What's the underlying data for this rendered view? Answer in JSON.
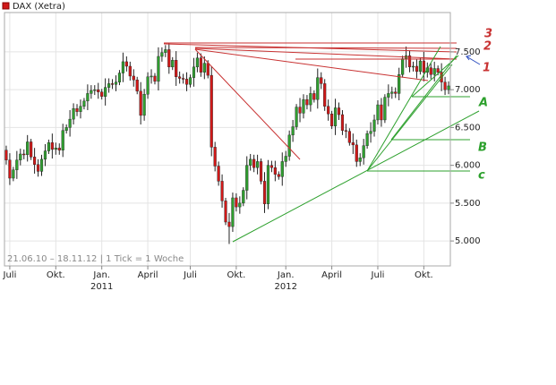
{
  "chart_data": {
    "type": "candlestick",
    "title": "DAX (Xetra)",
    "note": "21.06.10 – 18.11.12 | 1 Tick = 1 Woche",
    "up_color": "#2f9e2f",
    "down_color": "#d01818",
    "grid": true,
    "ylim": [
      4670,
      8020
    ],
    "yticks": [
      {
        "value": 5000,
        "label": "5.000"
      },
      {
        "value": 5500,
        "label": "5.500"
      },
      {
        "value": 6000,
        "label": "6.000"
      },
      {
        "value": 6500,
        "label": "6.500"
      },
      {
        "value": 7000,
        "label": "7.000"
      },
      {
        "value": 7500,
        "label": "7.500"
      }
    ],
    "xlim": [
      -0.5,
      125.5
    ],
    "xticks": [
      {
        "value": 1,
        "label": "Juli"
      },
      {
        "value": 14,
        "label": "Okt."
      },
      {
        "value": 27,
        "label": "Jan."
      },
      {
        "value": 40,
        "label": "April"
      },
      {
        "value": 52,
        "label": "Juli"
      },
      {
        "value": 65,
        "label": "Okt."
      },
      {
        "value": 79,
        "label": "Jan."
      },
      {
        "value": 92,
        "label": "April"
      },
      {
        "value": 105,
        "label": "Juli"
      },
      {
        "value": 118,
        "label": "Okt."
      }
    ],
    "x_year_labels": [
      {
        "value": 27,
        "label": "2011"
      },
      {
        "value": 79,
        "label": "2012"
      }
    ],
    "annotations": [
      "3",
      "2",
      "1",
      "A",
      "B",
      "c"
    ],
    "open": [
      6200,
      6070,
      5830,
      5940,
      6070,
      6150,
      6140,
      6310,
      6110,
      6010,
      5920,
      6080,
      6190,
      6300,
      6210,
      6230,
      6200,
      6460,
      6500,
      6610,
      6750,
      6710,
      6780,
      6850,
      6950,
      6990,
      7000,
      6970,
      6910,
      7030,
      7080,
      7070,
      7100,
      7220,
      7370,
      7310,
      7180,
      7130,
      6980,
      6660,
      6940,
      7170,
      7180,
      7110,
      7440,
      7490,
      7530,
      7300,
      7390,
      7170,
      7150,
      7140,
      7070,
      7160,
      7300,
      7420,
      7230,
      7350,
      7190,
      6240,
      5990,
      5790,
      5530,
      5250,
      5190,
      5570,
      5450,
      5500,
      5670,
      6000,
      6080,
      5970,
      6050,
      5790,
      5490,
      6000,
      5970,
      5880,
      5850,
      6050,
      6120,
      6400,
      6510,
      6770,
      6690,
      6870,
      6800,
      6950,
      6870,
      7160,
      7080,
      6780,
      6680,
      6520,
      6760,
      6670,
      6460,
      6450,
      6300,
      6270,
      6050,
      6100,
      6260,
      6420,
      6450,
      6600,
      6800,
      6600,
      6900,
      6950,
      6970,
      6950,
      7200,
      7410,
      7450,
      7300,
      7310,
      7240,
      7380,
      7230,
      7290,
      7200,
      7280,
      7230,
      7100,
      7000
    ],
    "high": [
      6260,
      6160,
      5980,
      6190,
      6220,
      6210,
      6400,
      6350,
      6230,
      6080,
      6140,
      6280,
      6340,
      6420,
      6300,
      6290,
      6550,
      6540,
      6730,
      6820,
      6810,
      6870,
      6890,
      7070,
      7060,
      7060,
      7090,
      7010,
      7150,
      7150,
      7140,
      7190,
      7260,
      7490,
      7440,
      7370,
      7270,
      7170,
      7100,
      7010,
      7230,
      7270,
      7220,
      7560,
      7560,
      7590,
      7620,
      7430,
      7510,
      7240,
      7210,
      7230,
      7200,
      7420,
      7490,
      7480,
      7440,
      7390,
      7310,
      6310,
      6050,
      5880,
      5570,
      5370,
      5640,
      5630,
      5590,
      5710,
      6120,
      6150,
      6140,
      6140,
      6090,
      5910,
      6070,
      6060,
      6060,
      5920,
      6170,
      6190,
      6460,
      6600,
      6810,
      6890,
      6940,
      6930,
      7040,
      6990,
      7280,
      7230,
      7140,
      6870,
      6720,
      6880,
      6830,
      6730,
      6550,
      6490,
      6420,
      6340,
      6160,
      6350,
      6460,
      6570,
      6670,
      6860,
      6890,
      6940,
      7070,
      7040,
      7030,
      7290,
      7450,
      7570,
      7520,
      7370,
      7400,
      7420,
      7500,
      7360,
      7350,
      7370,
      7320,
      7350,
      7170,
      7110
    ],
    "low": [
      6010,
      5740,
      5790,
      5820,
      6000,
      6080,
      6050,
      6070,
      5890,
      5850,
      5860,
      5990,
      6150,
      6090,
      6140,
      6140,
      6110,
      6420,
      6380,
      6540,
      6650,
      6620,
      6740,
      6730,
      6880,
      6930,
      6880,
      6870,
      6790,
      6960,
      7010,
      6980,
      7060,
      7100,
      7240,
      7120,
      7040,
      6940,
      6540,
      6590,
      6880,
      7080,
      7070,
      6990,
      7370,
      7430,
      7210,
      7260,
      7050,
      7080,
      7080,
      6980,
      7030,
      7040,
      7230,
      7170,
      7140,
      7150,
      6120,
      5920,
      5730,
      5440,
      5210,
      4960,
      5120,
      5390,
      5360,
      5460,
      5550,
      5930,
      5910,
      5880,
      5750,
      5370,
      5420,
      5910,
      5790,
      5810,
      5730,
      5980,
      6060,
      6310,
      6470,
      6570,
      6620,
      6740,
      6710,
      6830,
      6750,
      7010,
      6720,
      6590,
      6480,
      6400,
      6600,
      6400,
      6360,
      6260,
      6150,
      5980,
      5990,
      6010,
      6220,
      6300,
      6380,
      6540,
      6510,
      6560,
      6780,
      6880,
      6890,
      6860,
      7160,
      7290,
      7230,
      7240,
      7150,
      7200,
      7110,
      7160,
      7140,
      7110,
      7190,
      6980,
      6930,
      6940
    ],
    "close": [
      6070,
      5830,
      5940,
      6070,
      6150,
      6140,
      6310,
      6110,
      6010,
      5920,
      6080,
      6190,
      6300,
      6210,
      6230,
      6200,
      6460,
      6500,
      6610,
      6750,
      6710,
      6780,
      6850,
      6950,
      6990,
      7000,
      6970,
      6910,
      7030,
      7080,
      7070,
      7100,
      7220,
      7370,
      7310,
      7180,
      7130,
      6980,
      6660,
      6940,
      7170,
      7180,
      7110,
      7440,
      7490,
      7530,
      7300,
      7390,
      7170,
      7150,
      7140,
      7070,
      7160,
      7300,
      7420,
      7230,
      7350,
      7190,
      6240,
      5990,
      5790,
      5530,
      5250,
      5190,
      5570,
      5450,
      5500,
      5670,
      6000,
      6080,
      5970,
      6050,
      5790,
      5490,
      6000,
      5970,
      5880,
      5850,
      6050,
      6120,
      6400,
      6510,
      6770,
      6690,
      6870,
      6800,
      6950,
      6870,
      7160,
      7080,
      6780,
      6680,
      6520,
      6760,
      6670,
      6460,
      6450,
      6300,
      6270,
      6050,
      6100,
      6260,
      6420,
      6450,
      6600,
      6800,
      6600,
      6900,
      6950,
      6970,
      6950,
      7200,
      7410,
      7450,
      7300,
      7310,
      7240,
      7380,
      7230,
      7290,
      7200,
      7280,
      7230,
      7100,
      7000,
      7050
    ]
  }
}
